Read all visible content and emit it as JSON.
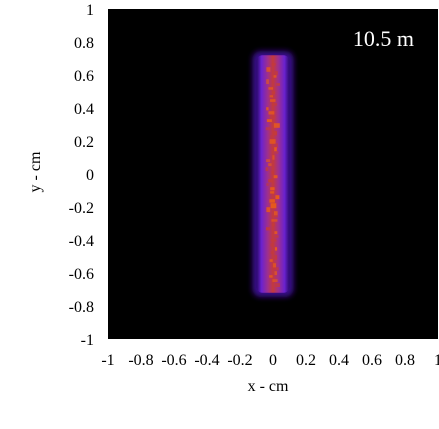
{
  "chart_data": {
    "type": "heatmap",
    "title": "",
    "xlabel": "x - cm",
    "ylabel": "y - cm",
    "xlim": [
      -1,
      1
    ],
    "ylim": [
      -1,
      1
    ],
    "grid": false,
    "x_tick_labels": [
      "-1",
      "-0.8",
      "-0.6",
      "-0.4",
      "-0.2",
      "0",
      "0.2",
      "0.4",
      "0.6",
      "0.8",
      "1"
    ],
    "y_tick_labels": [
      "-1",
      "-0.8",
      "-0.6",
      "-0.4",
      "-0.2",
      "0",
      "0.2",
      "0.4",
      "0.6",
      "0.8",
      "1"
    ],
    "annotation": "10.5 m",
    "background_color": "#000000",
    "colors": {
      "outer_glow": "#3a0f8f",
      "edge": "#7a2ee0",
      "core": "#c43a3a",
      "hot": "#e85a1a"
    },
    "beam": {
      "x_range": [
        -0.1,
        0.1
      ],
      "y_range": [
        -0.72,
        0.72
      ],
      "core_x_range": [
        -0.045,
        0.045
      ]
    }
  }
}
